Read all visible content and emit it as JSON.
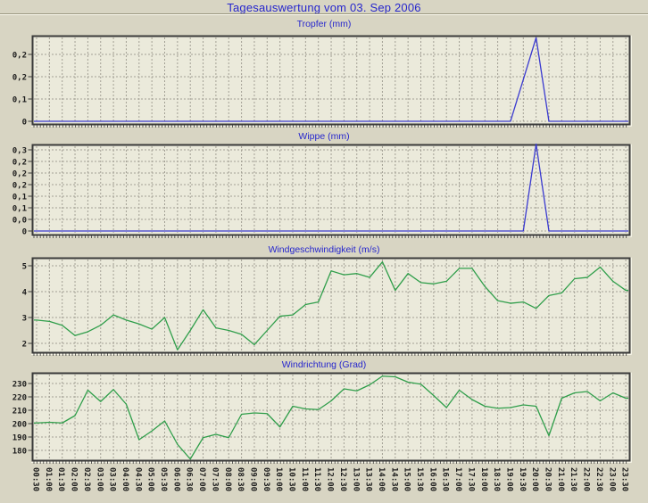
{
  "page": {
    "title": "Tagesauswertung vom 03. Sep 2006"
  },
  "colors": {
    "page_bg": "#d8d5c3",
    "plot_bg": "#ebeadb",
    "grid": "#a3a095",
    "border": "#3a3a3a",
    "title_text": "#2626cd",
    "axis_text": "#1c1c1c",
    "rain_line": "#3a3ad0",
    "wind_line": "#2f9e4a"
  },
  "x_axis": {
    "tick_labels": [
      "00:30",
      "01:00",
      "01:30",
      "02:00",
      "02:30",
      "03:00",
      "03:30",
      "04:00",
      "04:30",
      "05:00",
      "05:30",
      "06:00",
      "06:30",
      "07:00",
      "07:30",
      "08:00",
      "08:30",
      "09:00",
      "09:30",
      "10:00",
      "10:30",
      "11:00",
      "11:30",
      "12:00",
      "12:30",
      "13:00",
      "13:30",
      "14:00",
      "14:30",
      "15:00",
      "15:30",
      "16:00",
      "16:30",
      "17:00",
      "17:30",
      "18:00",
      "18:30",
      "19:00",
      "19:30",
      "20:00",
      "20:30",
      "21:00",
      "21:30",
      "22:00",
      "22:30",
      "23:00",
      "23:30"
    ]
  },
  "chart_data": [
    {
      "type": "line",
      "id": "tropfer",
      "title": "Tropfer (mm)",
      "line_color": "#3a3ad0",
      "legend": "none",
      "grid": true,
      "categories_key": "x_axis.tick_labels",
      "y_tick_labels": [
        "0,2",
        "0,2",
        "0,1",
        "0"
      ],
      "y_tick_values": [
        0.24,
        0.16,
        0.08,
        0
      ],
      "ylim": [
        0,
        0.24
      ],
      "values": [
        0,
        0,
        0,
        0,
        0,
        0,
        0,
        0,
        0,
        0,
        0,
        0,
        0,
        0,
        0,
        0,
        0,
        0,
        0,
        0,
        0,
        0,
        0,
        0,
        0,
        0,
        0,
        0,
        0,
        0,
        0,
        0,
        0,
        0,
        0,
        0,
        0,
        0,
        0.15,
        0.3,
        0,
        0,
        0,
        0,
        0,
        0,
        0
      ]
    },
    {
      "type": "line",
      "id": "wippe",
      "title": "Wippe (mm)",
      "line_color": "#3a3ad0",
      "legend": "none",
      "grid": true,
      "categories_key": "x_axis.tick_labels",
      "y_tick_labels": [
        "0,3",
        "0,2",
        "0,2",
        "0,2",
        "0,1",
        "0,1",
        "0,0",
        "0"
      ],
      "y_tick_values": [
        0.28,
        0.24,
        0.2,
        0.16,
        0.12,
        0.08,
        0.04,
        0
      ],
      "ylim": [
        0,
        0.28
      ],
      "values": [
        0,
        0,
        0,
        0,
        0,
        0,
        0,
        0,
        0,
        0,
        0,
        0,
        0,
        0,
        0,
        0,
        0,
        0,
        0,
        0,
        0,
        0,
        0,
        0,
        0,
        0,
        0,
        0,
        0,
        0,
        0,
        0,
        0,
        0,
        0,
        0,
        0,
        0,
        0,
        0.3,
        0,
        0,
        0,
        0,
        0,
        0,
        0
      ]
    },
    {
      "type": "line",
      "id": "windgeschwindigkeit",
      "title": "Windgeschwindigkeit (m/s)",
      "line_color": "#2f9e4a",
      "legend": "none",
      "grid": true,
      "categories_key": "x_axis.tick_labels",
      "y_tick_labels": [
        "5",
        "4",
        "3",
        "2"
      ],
      "y_tick_values": [
        5,
        4,
        3,
        2
      ],
      "ylim": [
        2,
        5
      ],
      "values": [
        2.9,
        2.85,
        2.7,
        2.3,
        2.45,
        2.7,
        3.1,
        2.9,
        2.75,
        2.55,
        3.0,
        1.75,
        2.5,
        3.3,
        2.6,
        2.5,
        2.35,
        1.95,
        2.5,
        3.05,
        3.1,
        3.5,
        3.6,
        4.8,
        4.65,
        4.7,
        4.55,
        5.15,
        4.05,
        4.7,
        4.35,
        4.3,
        4.4,
        4.9,
        4.9,
        4.2,
        3.65,
        3.55,
        3.6,
        3.35,
        3.85,
        3.95,
        4.5,
        4.55,
        4.95,
        4.4,
        4.05
      ]
    },
    {
      "type": "line",
      "id": "windrichtung",
      "title": "Windrichtung (Grad)",
      "line_color": "#2f9e4a",
      "legend": "none",
      "grid": true,
      "categories_key": "x_axis.tick_labels",
      "y_tick_labels": [
        "230",
        "220",
        "210",
        "200",
        "190",
        "180"
      ],
      "y_tick_values": [
        230,
        220,
        210,
        200,
        190,
        180
      ],
      "ylim": [
        180,
        230
      ],
      "values": [
        200.5,
        201,
        200.5,
        206,
        225,
        216.5,
        225.5,
        214.5,
        188,
        194.5,
        202,
        184.5,
        173.5,
        189.5,
        192,
        189.5,
        207,
        208,
        207.5,
        197.5,
        213,
        211,
        210.5,
        217,
        226,
        224.5,
        229,
        235.5,
        235,
        231,
        229.5,
        221,
        212,
        225,
        218,
        213,
        211.5,
        212,
        214,
        213,
        191,
        219,
        223,
        224,
        217,
        223,
        219
      ]
    }
  ]
}
